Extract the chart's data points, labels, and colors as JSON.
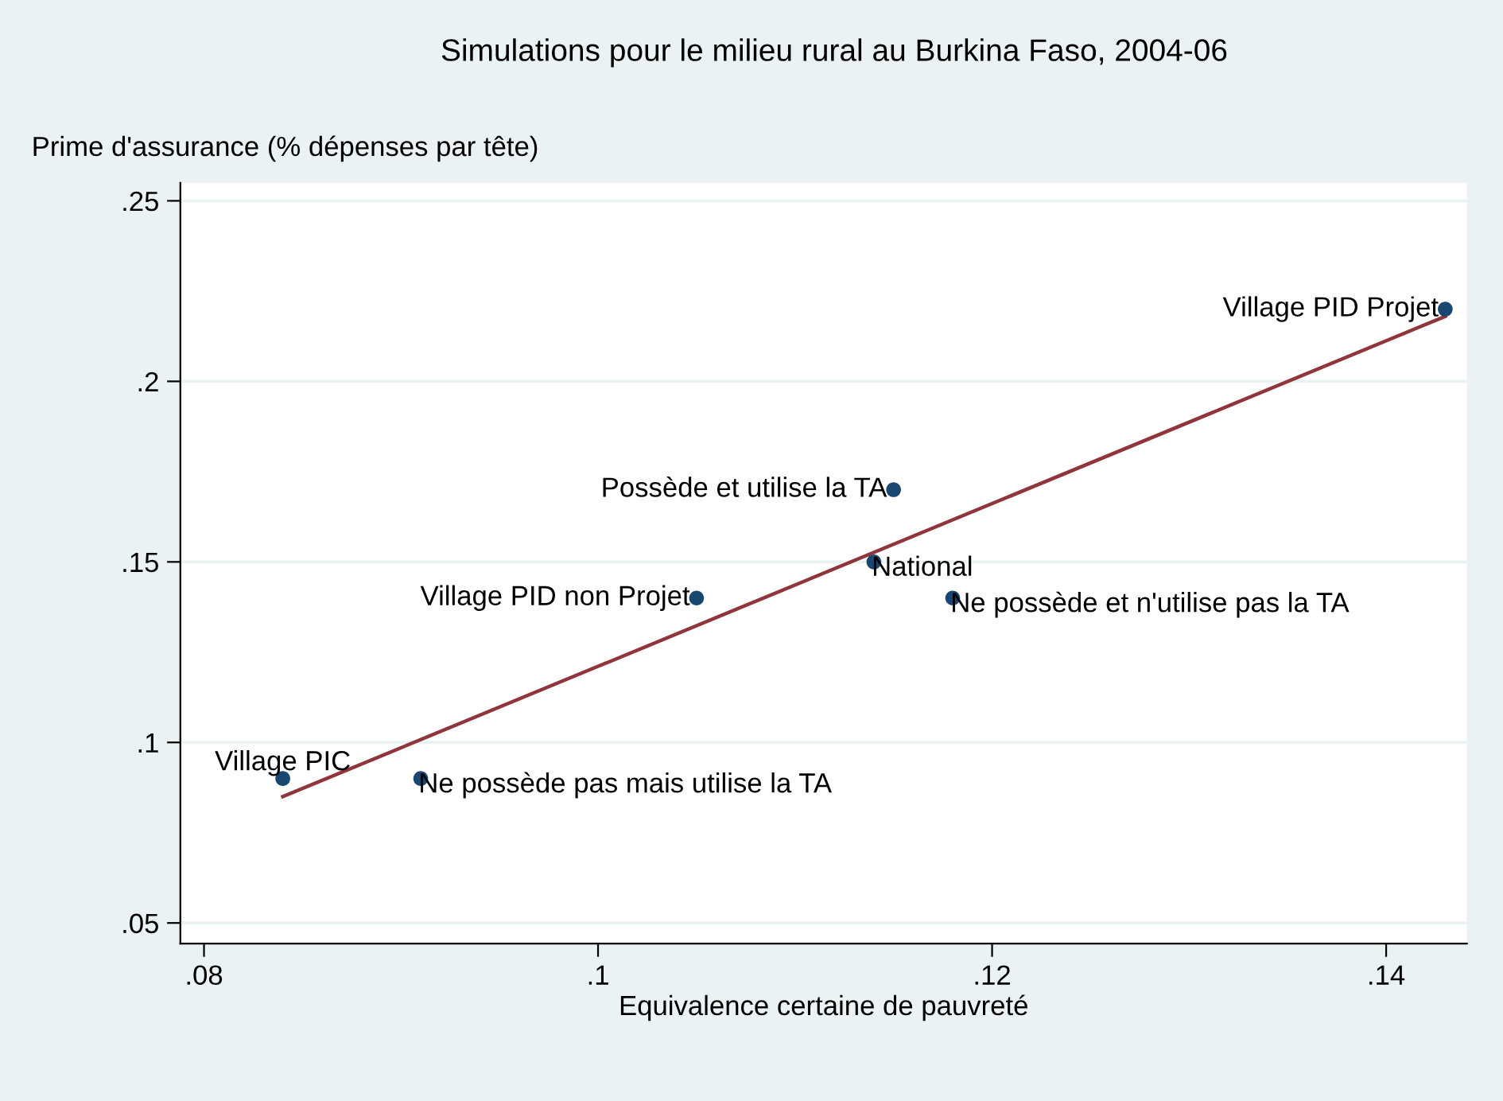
{
  "chart_data": {
    "type": "scatter",
    "title": "Simulations pour le milieu rural au Burkina Faso, 2004-06",
    "xlabel": "Equivalence certaine de pauvreté",
    "ylabel": "Prime d'assurance (% dépenses par tête)",
    "series": [
      {
        "color": "#1a476f",
        "x": [
          0.143,
          0.115,
          0.114,
          0.105,
          0.118,
          0.084,
          0.091
        ],
        "values": [
          0.22,
          0.17,
          0.15,
          0.14,
          0.14,
          0.09,
          0.09
        ],
        "marker": "circle"
      },
      {
        "type": "line",
        "color": "#90353b",
        "x": [
          0.084,
          0.143
        ],
        "values": [
          0.085,
          0.218
        ],
        "line_style": "solid"
      }
    ],
    "annotations": [
      {
        "text": "Village PID Projet",
        "x": 0.143,
        "y": 0.22
      },
      {
        "text": "Possède et utilise la TA",
        "x": 0.115,
        "y": 0.17
      },
      {
        "text": "National",
        "x": 0.114,
        "y": 0.15
      },
      {
        "text": "Village PID non Projet",
        "x": 0.105,
        "y": 0.14
      },
      {
        "text": "Ne possède et n'utilise pas la TA",
        "x": 0.118,
        "y": 0.14
      },
      {
        "text": "Village PIC",
        "x": 0.084,
        "y": 0.09
      },
      {
        "text": "Ne possède pas mais utilise la TA",
        "x": 0.091,
        "y": 0.09
      }
    ],
    "xlim": [
      0.0788,
      0.1441
    ],
    "xticks": [
      {
        "value": 0.08,
        "label": ".08"
      },
      {
        "value": 0.1,
        "label": ".1"
      },
      {
        "value": 0.12,
        "label": ".12"
      },
      {
        "value": 0.14,
        "label": ".14"
      }
    ],
    "ylim": [
      0.0443,
      0.255
    ],
    "yticks": [
      {
        "value": 0.05,
        "label": ".05"
      },
      {
        "value": 0.1,
        "label": ".1"
      },
      {
        "value": 0.15,
        "label": ".15"
      },
      {
        "value": 0.2,
        "label": ".2"
      },
      {
        "value": 0.25,
        "label": ".25"
      }
    ],
    "grid": "y",
    "legend": false
  }
}
